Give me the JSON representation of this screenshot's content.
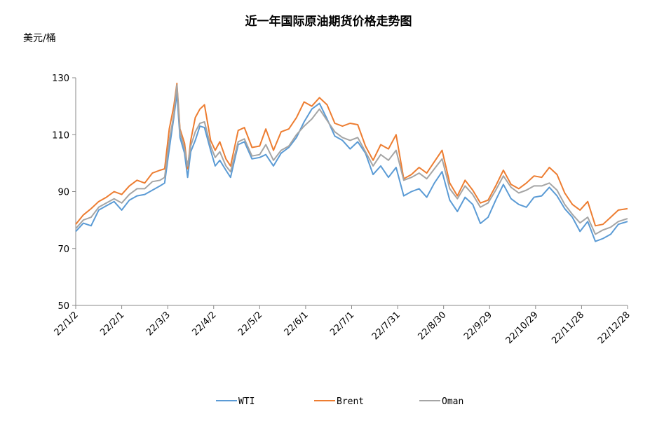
{
  "chart_data": {
    "type": "line",
    "title": "近一年国际原油期货价格走势图",
    "ylabel": "美元/桶",
    "xlabel": "",
    "ylim": [
      50,
      130
    ],
    "yticks": [
      50,
      70,
      90,
      110,
      130
    ],
    "xlim": [
      "2022-01-02",
      "2022-12-28"
    ],
    "xticks": [
      "2022-01-02",
      "2022-02-01",
      "2022-03-03",
      "2022-04-02",
      "2022-05-02",
      "2022-06-01",
      "2022-07-01",
      "2022-07-31",
      "2022-08-30",
      "2022-09-29",
      "2022-10-29",
      "2022-11-28",
      "2022-12-28"
    ],
    "xtick_labels": [
      "22/1/2",
      "22/2/1",
      "22/3/3",
      "22/4/2",
      "22/5/2",
      "22/6/1",
      "22/7/1",
      "22/7/31",
      "22/8/30",
      "22/9/29",
      "22/10/29",
      "22/11/28",
      "22/12/28"
    ],
    "legend_position": "bottom",
    "grid": false,
    "series": [
      {
        "name": "WTI",
        "color": "#5b9bd5",
        "points": [
          [
            "2022-01-02",
            76
          ],
          [
            "2022-01-07",
            78.9
          ],
          [
            "2022-01-12",
            78
          ],
          [
            "2022-01-17",
            83.5
          ],
          [
            "2022-01-22",
            85
          ],
          [
            "2022-01-27",
            86.5
          ],
          [
            "2022-02-01",
            83.5
          ],
          [
            "2022-02-06",
            87
          ],
          [
            "2022-02-11",
            88.5
          ],
          [
            "2022-02-16",
            89
          ],
          [
            "2022-02-21",
            90.5
          ],
          [
            "2022-02-26",
            92
          ],
          [
            "2022-03-01",
            93
          ],
          [
            "2022-03-04",
            105
          ],
          [
            "2022-03-07",
            116
          ],
          [
            "2022-03-09",
            124.5
          ],
          [
            "2022-03-11",
            109
          ],
          [
            "2022-03-14",
            103.5
          ],
          [
            "2022-03-16",
            95
          ],
          [
            "2022-03-18",
            104
          ],
          [
            "2022-03-21",
            108
          ],
          [
            "2022-03-24",
            113
          ],
          [
            "2022-03-27",
            112.5
          ],
          [
            "2022-03-31",
            104.5
          ],
          [
            "2022-04-03",
            99
          ],
          [
            "2022-04-06",
            101
          ],
          [
            "2022-04-10",
            97.5
          ],
          [
            "2022-04-13",
            95
          ],
          [
            "2022-04-18",
            106.5
          ],
          [
            "2022-04-22",
            107.5
          ],
          [
            "2022-04-27",
            101.5
          ],
          [
            "2022-05-02",
            102
          ],
          [
            "2022-05-06",
            103
          ],
          [
            "2022-05-11",
            99
          ],
          [
            "2022-05-16",
            103.5
          ],
          [
            "2022-05-21",
            105.5
          ],
          [
            "2022-05-26",
            109
          ],
          [
            "2022-05-31",
            114.5
          ],
          [
            "2022-06-05",
            119
          ],
          [
            "2022-06-10",
            121
          ],
          [
            "2022-06-15",
            115.5
          ],
          [
            "2022-06-20",
            109.5
          ],
          [
            "2022-06-25",
            108
          ],
          [
            "2022-06-30",
            105
          ],
          [
            "2022-07-05",
            107.5
          ],
          [
            "2022-07-10",
            103.5
          ],
          [
            "2022-07-15",
            96
          ],
          [
            "2022-07-20",
            99
          ],
          [
            "2022-07-25",
            95
          ],
          [
            "2022-07-30",
            98.5
          ],
          [
            "2022-08-04",
            88.5
          ],
          [
            "2022-08-09",
            90
          ],
          [
            "2022-08-14",
            91
          ],
          [
            "2022-08-19",
            88
          ],
          [
            "2022-08-24",
            93
          ],
          [
            "2022-08-29",
            97
          ],
          [
            "2022-09-03",
            87
          ],
          [
            "2022-09-08",
            83
          ],
          [
            "2022-09-13",
            88
          ],
          [
            "2022-09-18",
            85.5
          ],
          [
            "2022-09-23",
            78.8
          ],
          [
            "2022-09-28",
            81
          ],
          [
            "2022-10-03",
            87
          ],
          [
            "2022-10-08",
            92.5
          ],
          [
            "2022-10-13",
            87.5
          ],
          [
            "2022-10-18",
            85.5
          ],
          [
            "2022-10-23",
            84.5
          ],
          [
            "2022-10-28",
            88
          ],
          [
            "2022-11-02",
            88.5
          ],
          [
            "2022-11-07",
            91.5
          ],
          [
            "2022-11-12",
            88.5
          ],
          [
            "2022-11-17",
            84
          ],
          [
            "2022-11-22",
            81
          ],
          [
            "2022-11-27",
            76
          ],
          [
            "2022-12-02",
            79.5
          ],
          [
            "2022-12-07",
            72.5
          ],
          [
            "2022-12-12",
            73.5
          ],
          [
            "2022-12-17",
            75
          ],
          [
            "2022-12-22",
            78.5
          ],
          [
            "2022-12-28",
            79.5
          ]
        ]
      },
      {
        "name": "Brent",
        "color": "#ed7d31",
        "points": [
          [
            "2022-01-02",
            78.5
          ],
          [
            "2022-01-07",
            81.8
          ],
          [
            "2022-01-12",
            84
          ],
          [
            "2022-01-17",
            86.5
          ],
          [
            "2022-01-22",
            88
          ],
          [
            "2022-01-27",
            90
          ],
          [
            "2022-02-01",
            89
          ],
          [
            "2022-02-06",
            92
          ],
          [
            "2022-02-11",
            94
          ],
          [
            "2022-02-16",
            93
          ],
          [
            "2022-02-21",
            96.5
          ],
          [
            "2022-02-26",
            97.5
          ],
          [
            "2022-03-01",
            98
          ],
          [
            "2022-03-04",
            112
          ],
          [
            "2022-03-07",
            120
          ],
          [
            "2022-03-09",
            128
          ],
          [
            "2022-03-11",
            112
          ],
          [
            "2022-03-14",
            107
          ],
          [
            "2022-03-16",
            98
          ],
          [
            "2022-03-18",
            108
          ],
          [
            "2022-03-21",
            116
          ],
          [
            "2022-03-24",
            119
          ],
          [
            "2022-03-27",
            120.5
          ],
          [
            "2022-03-31",
            108
          ],
          [
            "2022-04-03",
            104.5
          ],
          [
            "2022-04-06",
            107.5
          ],
          [
            "2022-04-10",
            101.5
          ],
          [
            "2022-04-13",
            99
          ],
          [
            "2022-04-18",
            111.5
          ],
          [
            "2022-04-22",
            112.5
          ],
          [
            "2022-04-27",
            105.5
          ],
          [
            "2022-05-02",
            106
          ],
          [
            "2022-05-06",
            112
          ],
          [
            "2022-05-11",
            104.5
          ],
          [
            "2022-05-16",
            111
          ],
          [
            "2022-05-21",
            112
          ],
          [
            "2022-05-26",
            116
          ],
          [
            "2022-05-31",
            121.5
          ],
          [
            "2022-06-05",
            120
          ],
          [
            "2022-06-10",
            123
          ],
          [
            "2022-06-15",
            120.5
          ],
          [
            "2022-06-20",
            114
          ],
          [
            "2022-06-25",
            113
          ],
          [
            "2022-06-30",
            114
          ],
          [
            "2022-07-05",
            113.5
          ],
          [
            "2022-07-10",
            106
          ],
          [
            "2022-07-15",
            101
          ],
          [
            "2022-07-20",
            106.5
          ],
          [
            "2022-07-25",
            105
          ],
          [
            "2022-07-30",
            110
          ],
          [
            "2022-08-04",
            94.5
          ],
          [
            "2022-08-09",
            96
          ],
          [
            "2022-08-14",
            98.5
          ],
          [
            "2022-08-19",
            96.5
          ],
          [
            "2022-08-24",
            100.5
          ],
          [
            "2022-08-29",
            104.5
          ],
          [
            "2022-09-03",
            93
          ],
          [
            "2022-09-08",
            88.5
          ],
          [
            "2022-09-13",
            94
          ],
          [
            "2022-09-18",
            90.5
          ],
          [
            "2022-09-23",
            86
          ],
          [
            "2022-09-28",
            87
          ],
          [
            "2022-10-03",
            92
          ],
          [
            "2022-10-08",
            97.5
          ],
          [
            "2022-10-13",
            92.5
          ],
          [
            "2022-10-18",
            91
          ],
          [
            "2022-10-23",
            93
          ],
          [
            "2022-10-28",
            95.5
          ],
          [
            "2022-11-02",
            95
          ],
          [
            "2022-11-07",
            98.5
          ],
          [
            "2022-11-12",
            96
          ],
          [
            "2022-11-17",
            89.5
          ],
          [
            "2022-11-22",
            85.5
          ],
          [
            "2022-11-27",
            83.5
          ],
          [
            "2022-12-02",
            86.5
          ],
          [
            "2022-12-07",
            78
          ],
          [
            "2022-12-12",
            78.5
          ],
          [
            "2022-12-17",
            81
          ],
          [
            "2022-12-22",
            83.5
          ],
          [
            "2022-12-28",
            84
          ]
        ]
      },
      {
        "name": "Oman",
        "color": "#a5a5a5",
        "points": [
          [
            "2022-01-02",
            77
          ],
          [
            "2022-01-07",
            80
          ],
          [
            "2022-01-12",
            81
          ],
          [
            "2022-01-17",
            84.5
          ],
          [
            "2022-01-22",
            86
          ],
          [
            "2022-01-27",
            87.5
          ],
          [
            "2022-02-01",
            86
          ],
          [
            "2022-02-06",
            89
          ],
          [
            "2022-02-11",
            91
          ],
          [
            "2022-02-16",
            91
          ],
          [
            "2022-02-21",
            93.5
          ],
          [
            "2022-02-26",
            94
          ],
          [
            "2022-03-01",
            95
          ],
          [
            "2022-03-04",
            108
          ],
          [
            "2022-03-07",
            117
          ],
          [
            "2022-03-09",
            127.5
          ],
          [
            "2022-03-11",
            111
          ],
          [
            "2022-03-14",
            105
          ],
          [
            "2022-03-16",
            99
          ],
          [
            "2022-03-18",
            106
          ],
          [
            "2022-03-21",
            111
          ],
          [
            "2022-03-24",
            114
          ],
          [
            "2022-03-27",
            114.5
          ],
          [
            "2022-03-31",
            106
          ],
          [
            "2022-04-03",
            102
          ],
          [
            "2022-04-06",
            104
          ],
          [
            "2022-04-10",
            99
          ],
          [
            "2022-04-13",
            97
          ],
          [
            "2022-04-18",
            107.5
          ],
          [
            "2022-04-22",
            108.5
          ],
          [
            "2022-04-27",
            102.5
          ],
          [
            "2022-05-02",
            103
          ],
          [
            "2022-05-06",
            106.5
          ],
          [
            "2022-05-11",
            101
          ],
          [
            "2022-05-16",
            104.5
          ],
          [
            "2022-05-21",
            106
          ],
          [
            "2022-05-26",
            110
          ],
          [
            "2022-05-31",
            113
          ],
          [
            "2022-06-05",
            115.5
          ],
          [
            "2022-06-10",
            119
          ],
          [
            "2022-06-15",
            115
          ],
          [
            "2022-06-20",
            111
          ],
          [
            "2022-06-25",
            109
          ],
          [
            "2022-06-30",
            108
          ],
          [
            "2022-07-05",
            109
          ],
          [
            "2022-07-10",
            104
          ],
          [
            "2022-07-15",
            99
          ],
          [
            "2022-07-20",
            103
          ],
          [
            "2022-07-25",
            101
          ],
          [
            "2022-07-30",
            104.5
          ],
          [
            "2022-08-04",
            94
          ],
          [
            "2022-08-09",
            95
          ],
          [
            "2022-08-14",
            96.5
          ],
          [
            "2022-08-19",
            94.5
          ],
          [
            "2022-08-24",
            98
          ],
          [
            "2022-08-29",
            101.5
          ],
          [
            "2022-09-03",
            91
          ],
          [
            "2022-09-08",
            87.5
          ],
          [
            "2022-09-13",
            92
          ],
          [
            "2022-09-18",
            89
          ],
          [
            "2022-09-23",
            84.5
          ],
          [
            "2022-09-28",
            86
          ],
          [
            "2022-10-03",
            90.5
          ],
          [
            "2022-10-08",
            95.5
          ],
          [
            "2022-10-13",
            91.5
          ],
          [
            "2022-10-18",
            89.5
          ],
          [
            "2022-10-23",
            90.5
          ],
          [
            "2022-10-28",
            92
          ],
          [
            "2022-11-02",
            92
          ],
          [
            "2022-11-07",
            93
          ],
          [
            "2022-11-12",
            90.5
          ],
          [
            "2022-11-17",
            85.5
          ],
          [
            "2022-11-22",
            82
          ],
          [
            "2022-11-27",
            79
          ],
          [
            "2022-12-02",
            81
          ],
          [
            "2022-12-07",
            75
          ],
          [
            "2022-12-12",
            76.5
          ],
          [
            "2022-12-17",
            77.5
          ],
          [
            "2022-12-22",
            79.5
          ],
          [
            "2022-12-28",
            80.5
          ]
        ]
      }
    ]
  }
}
